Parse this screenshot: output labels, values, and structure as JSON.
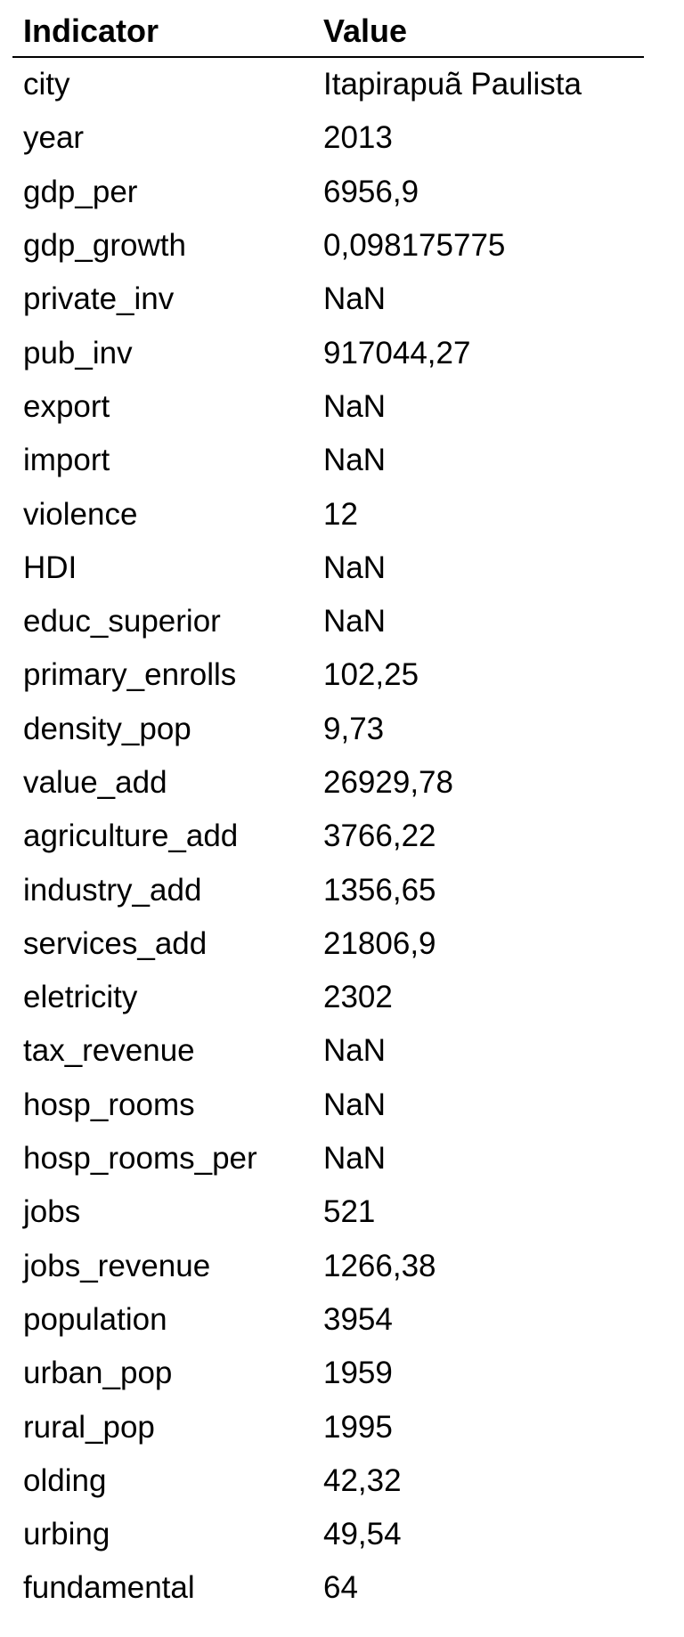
{
  "table": {
    "headers": [
      "Indicator",
      "Value"
    ],
    "rows": [
      [
        "city",
        "Itapirapuã Paulista"
      ],
      [
        "year",
        "2013"
      ],
      [
        "gdp_per",
        "6956,9"
      ],
      [
        "gdp_growth",
        "0,098175775"
      ],
      [
        "private_inv",
        "NaN"
      ],
      [
        "pub_inv",
        "917044,27"
      ],
      [
        "export",
        "NaN"
      ],
      [
        "import",
        "NaN"
      ],
      [
        "violence",
        "12"
      ],
      [
        "HDI",
        "NaN"
      ],
      [
        "educ_superior",
        "NaN"
      ],
      [
        "primary_enrolls",
        "102,25"
      ],
      [
        "density_pop",
        "9,73"
      ],
      [
        "value_add",
        "26929,78"
      ],
      [
        "agriculture_add",
        "3766,22"
      ],
      [
        "industry_add",
        "1356,65"
      ],
      [
        "services_add",
        "21806,9"
      ],
      [
        "eletricity",
        "2302"
      ],
      [
        "tax_revenue",
        "NaN"
      ],
      [
        "hosp_rooms",
        "NaN"
      ],
      [
        "hosp_rooms_per",
        "NaN"
      ],
      [
        "jobs",
        "521"
      ],
      [
        "jobs_revenue",
        "1266,38"
      ],
      [
        "population",
        "3954"
      ],
      [
        "urban_pop",
        "1959"
      ],
      [
        "rural_pop",
        "1995"
      ],
      [
        "olding",
        "42,32"
      ],
      [
        "urbing",
        "49,54"
      ],
      [
        "fundamental",
        "64"
      ]
    ]
  }
}
